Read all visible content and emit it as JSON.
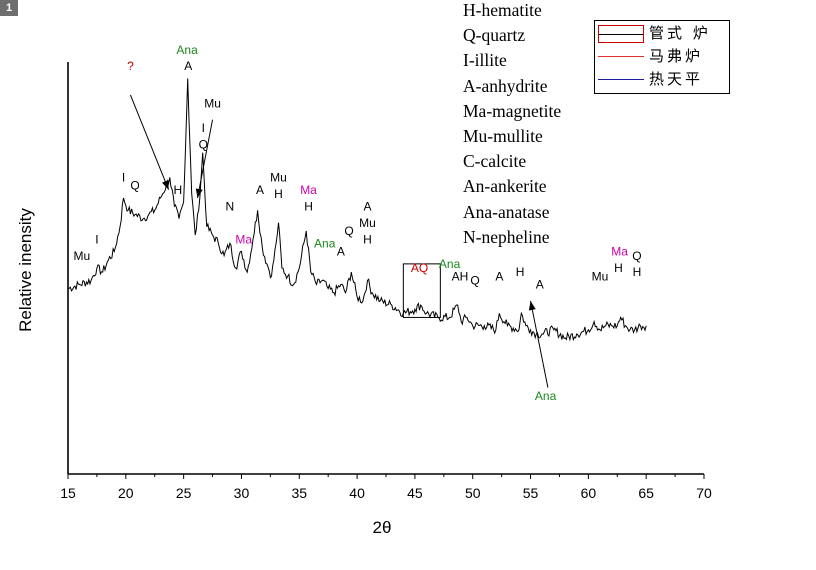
{
  "panel_badge": "1",
  "phase_list": [
    "H-hematite",
    "Q-quartz",
    "I-illite",
    "A-anhydrite",
    "Ma-magnetite",
    "Mu-mullite",
    "C-calcite",
    "An-ankerite",
    "Ana-anatase",
    "N-nepheline"
  ],
  "legend": [
    {
      "label": "管式 炉",
      "color": "#cc0000",
      "style": "box"
    },
    {
      "label": "马弗炉",
      "color": "#e03030",
      "style": "line"
    },
    {
      "label": "热天平",
      "color": "#1a1a9e",
      "style": "line"
    }
  ],
  "chart_data": {
    "type": "line",
    "xlabel": "2θ",
    "ylabel": "Relative inensity",
    "xlim": [
      15,
      70
    ],
    "ylim": [
      0,
      100
    ],
    "xticks": [
      15,
      20,
      25,
      30,
      35,
      40,
      45,
      50,
      55,
      60,
      65,
      70
    ],
    "grid": false,
    "series": [
      {
        "values_description": "single black diffraction pattern",
        "x": [
          15,
          16,
          17,
          17.5,
          18,
          18.5,
          19,
          19.5,
          19.8,
          20.2,
          20.8,
          21.5,
          22,
          22.5,
          23,
          23.5,
          23.8,
          24.2,
          24.6,
          25.0,
          25.35,
          25.7,
          26.0,
          26.3,
          26.65,
          27.0,
          27.5,
          28,
          28.5,
          29,
          29.5,
          30,
          30.5,
          31,
          31.4,
          31.8,
          32.2,
          32.6,
          33.0,
          33.2,
          33.5,
          34,
          34.5,
          35,
          35.6,
          36,
          36.5,
          37,
          37.5,
          38,
          38.6,
          39,
          39.5,
          40,
          40.5,
          40.9,
          41.3,
          42,
          43,
          44,
          45,
          45.5,
          46,
          47,
          48,
          48.7,
          49,
          49.5,
          50,
          51,
          52,
          52.3,
          53,
          54,
          54.2,
          54.6,
          55,
          55.5,
          56,
          57,
          58,
          59,
          60,
          60.5,
          61,
          61.5,
          62,
          62.5,
          62.8,
          63.2,
          63.6,
          64,
          64.5,
          65
        ],
        "values": [
          45,
          46,
          47,
          50,
          49,
          52,
          54,
          60,
          67,
          64,
          63,
          62,
          63,
          64,
          67,
          70,
          72,
          65,
          62,
          66,
          96,
          68,
          58,
          64,
          78,
          60,
          58,
          56,
          53,
          56,
          50,
          54,
          49,
          57,
          64,
          55,
          51,
          48,
          56,
          61,
          50,
          48,
          46,
          50,
          59,
          49,
          46,
          47,
          45,
          44,
          46,
          44,
          49,
          43,
          42,
          47,
          44,
          42,
          41,
          39,
          40,
          41,
          39,
          38,
          38,
          41,
          37,
          38,
          36,
          36,
          35,
          39,
          36,
          35,
          39,
          36,
          35,
          34,
          34,
          35,
          33,
          34,
          35,
          37,
          35,
          36,
          36,
          36,
          38,
          36,
          35,
          35,
          36,
          36
        ]
      }
    ],
    "annotations": [
      {
        "text": "Mu",
        "x": 16.2,
        "y": 52,
        "color": "#000000"
      },
      {
        "text": "I",
        "x": 17.5,
        "y": 56,
        "color": "#000000"
      },
      {
        "text": "I",
        "x": 19.8,
        "y": 71,
        "color": "#000000"
      },
      {
        "text": "Q",
        "x": 20.8,
        "y": 69,
        "color": "#000000"
      },
      {
        "text": "?",
        "x": 20.4,
        "y": 98,
        "color": "#cc0000"
      },
      {
        "text": "H",
        "x": 24.5,
        "y": 68,
        "color": "#000000"
      },
      {
        "text": "Ana",
        "x": 25.3,
        "y": 102,
        "color": "#1a8a1a"
      },
      {
        "text": "A",
        "x": 25.4,
        "y": 98,
        "color": "#000000"
      },
      {
        "text": "I",
        "x": 26.7,
        "y": 83,
        "color": "#000000"
      },
      {
        "text": "Q",
        "x": 26.7,
        "y": 79,
        "color": "#000000"
      },
      {
        "text": "Mu",
        "x": 27.5,
        "y": 89,
        "color": "#000000"
      },
      {
        "text": "N",
        "x": 29.0,
        "y": 64,
        "color": "#000000"
      },
      {
        "text": "Ma",
        "x": 30.2,
        "y": 56,
        "color": "#cc00aa"
      },
      {
        "text": "A",
        "x": 31.6,
        "y": 68,
        "color": "#000000"
      },
      {
        "text": "Mu",
        "x": 33.2,
        "y": 71,
        "color": "#000000"
      },
      {
        "text": "H",
        "x": 33.2,
        "y": 67,
        "color": "#000000"
      },
      {
        "text": "Ma",
        "x": 35.8,
        "y": 68,
        "color": "#cc00aa"
      },
      {
        "text": "H",
        "x": 35.8,
        "y": 64,
        "color": "#000000"
      },
      {
        "text": "Ana",
        "x": 37.2,
        "y": 55,
        "color": "#1a8a1a"
      },
      {
        "text": "A",
        "x": 38.6,
        "y": 53,
        "color": "#000000"
      },
      {
        "text": "Q",
        "x": 39.3,
        "y": 58,
        "color": "#000000"
      },
      {
        "text": "A",
        "x": 40.9,
        "y": 64,
        "color": "#000000"
      },
      {
        "text": "Mu",
        "x": 40.9,
        "y": 60,
        "color": "#000000"
      },
      {
        "text": "H",
        "x": 40.9,
        "y": 56,
        "color": "#000000"
      },
      {
        "text": "AQ",
        "x": 45.4,
        "y": 49,
        "color": "#cc0000"
      },
      {
        "text": "Ana",
        "x": 48.0,
        "y": 50,
        "color": "#1a8a1a"
      },
      {
        "text": "AH",
        "x": 48.9,
        "y": 47,
        "color": "#000000"
      },
      {
        "text": "Q",
        "x": 50.2,
        "y": 46,
        "color": "#000000"
      },
      {
        "text": "A",
        "x": 52.3,
        "y": 47,
        "color": "#000000"
      },
      {
        "text": "H",
        "x": 54.1,
        "y": 48,
        "color": "#000000"
      },
      {
        "text": "A",
        "x": 55.8,
        "y": 45,
        "color": "#000000"
      },
      {
        "text": "Ana",
        "x": 56.3,
        "y": 18,
        "color": "#1a8a1a"
      },
      {
        "text": "Mu",
        "x": 61.0,
        "y": 47,
        "color": "#000000"
      },
      {
        "text": "Ma",
        "x": 62.7,
        "y": 53,
        "color": "#cc00aa"
      },
      {
        "text": "H",
        "x": 62.6,
        "y": 49,
        "color": "#000000"
      },
      {
        "text": "Q",
        "x": 64.2,
        "y": 52,
        "color": "#000000"
      },
      {
        "text": "H",
        "x": 64.2,
        "y": 48,
        "color": "#000000"
      }
    ],
    "arrows": [
      {
        "from": [
          20.4,
          92
        ],
        "to": [
          23.7,
          69
        ],
        "for_label": "?"
      },
      {
        "from": [
          27.5,
          86
        ],
        "to": [
          26.2,
          67
        ],
        "for_label": "Mu"
      },
      {
        "from": [
          56.5,
          21
        ],
        "to": [
          55.0,
          42
        ],
        "for_label": "Ana"
      }
    ],
    "highlight_region": {
      "x": [
        44.0,
        47.2
      ],
      "y": [
        38,
        51
      ]
    }
  }
}
